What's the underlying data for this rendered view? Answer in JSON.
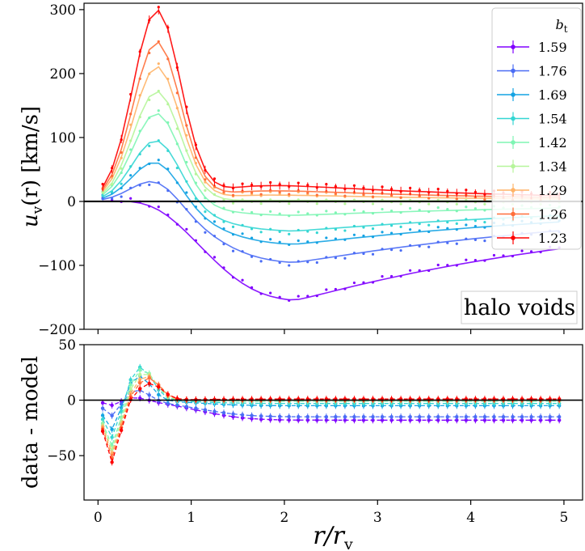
{
  "chart_data": [
    {
      "type": "line",
      "panel": "top",
      "ylabel": "u_v(r) [km/s]",
      "ylabel_main": "u",
      "ylabel_sub": "v",
      "ylabel_rest": "(r) [km/s]",
      "xlabel": "",
      "xlim": [
        -0.15,
        5.2
      ],
      "ylim": [
        -200,
        310
      ],
      "yticks": [
        -200,
        -100,
        0,
        100,
        200,
        300
      ],
      "ytick_labels": [
        "−200",
        "−100",
        "0",
        "100",
        "200",
        "300"
      ],
      "annotation": "halo voids",
      "legend_title": "b_t",
      "legend_title_main": "b",
      "legend_title_sub": "t",
      "legend_position": "top-right",
      "zero_line": true,
      "series": [
        {
          "name": "1.59",
          "color": "#8000ff",
          "amp": 160,
          "depth": -157
        },
        {
          "name": "1.76",
          "color": "#4a6cf5",
          "amp": 155,
          "depth": -97
        },
        {
          "name": "1.69",
          "color": "#14a3e3",
          "amp": 150,
          "depth": -68
        },
        {
          "name": "1.54",
          "color": "#34d6d3",
          "amp": 145,
          "depth": -47
        },
        {
          "name": "1.42",
          "color": "#7ef5b4",
          "amp": 140,
          "depth": -22
        },
        {
          "name": "1.34",
          "color": "#b6f59a",
          "amp": 140,
          "depth": 2
        },
        {
          "name": "1.29",
          "color": "#ffb468",
          "amp": 140,
          "depth": 12
        },
        {
          "name": "1.26",
          "color": "#ff6f3a",
          "amp": 150,
          "depth": 20
        },
        {
          "name": "1.23",
          "color": "#ff0000",
          "amp": 155,
          "depth": 30
        }
      ],
      "peaks": [
        5,
        40,
        68,
        100,
        140,
        172,
        210,
        248,
        297
      ]
    },
    {
      "type": "line",
      "panel": "bottom",
      "ylabel": "data - model",
      "xlabel": "r/r_v",
      "xlabel_main": "r/r",
      "xlabel_sub": "v",
      "xlim": [
        -0.15,
        5.2
      ],
      "ylim": [
        -90,
        50
      ],
      "yticks": [
        -50,
        0,
        50
      ],
      "ytick_labels": [
        "−50",
        "0",
        "50"
      ],
      "xticks": [
        0,
        1,
        2,
        3,
        4,
        5
      ],
      "xtick_labels": [
        "0",
        "1",
        "2",
        "3",
        "4",
        "5"
      ],
      "zero_line": true,
      "residual_tail": [
        -18,
        -15,
        -5,
        -3,
        -1,
        0,
        0,
        0,
        1
      ],
      "residual_dip": [
        -5,
        -15,
        -28,
        -35,
        -42,
        -45,
        -48,
        -52,
        -56
      ],
      "residual_peak": [
        3,
        10,
        22,
        30,
        28,
        25,
        22,
        20,
        15
      ]
    }
  ]
}
